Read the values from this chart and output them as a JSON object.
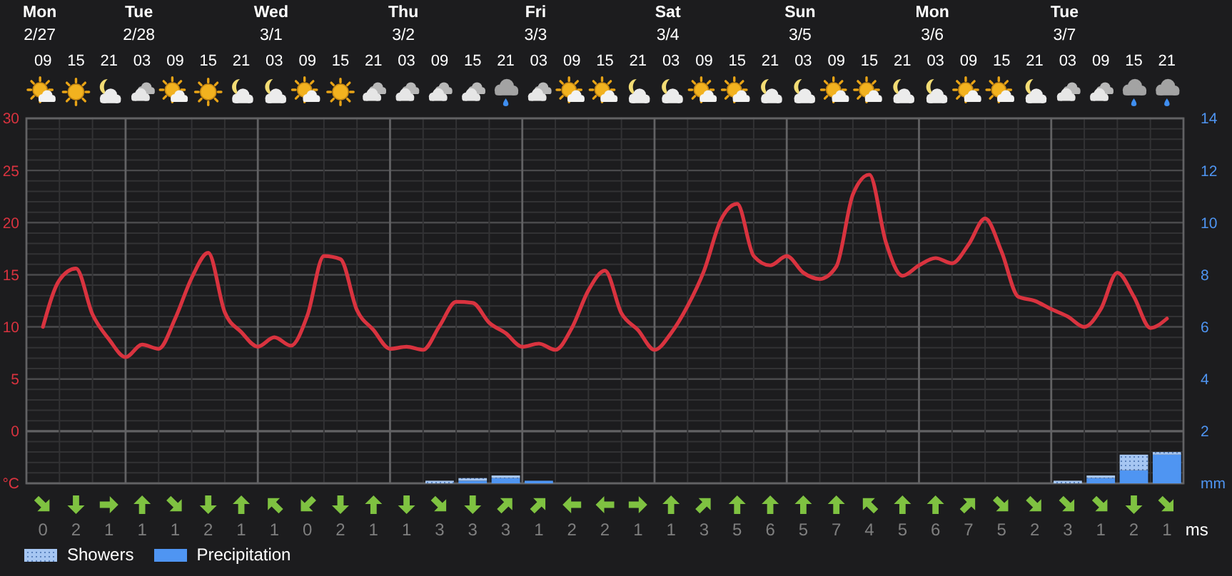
{
  "chart_data": [
    {
      "type": "line",
      "categories": [
        "Mon\n2/27\n09",
        null,
        "15",
        null,
        "21",
        null,
        "Tue\n2/28\n03",
        null,
        "09",
        null,
        "15",
        null,
        "21",
        null,
        "Wed\n3/1\n03",
        null,
        "09",
        null,
        "15",
        null,
        "21",
        null,
        "Thu\n3/2\n03",
        null,
        "09",
        null,
        "15",
        null,
        "21",
        null,
        "Fri\n3/3\n03",
        null,
        "09",
        null,
        "15",
        null,
        "21",
        null,
        "Sat\n3/4\n03",
        null,
        "09",
        null,
        "15",
        null,
        "21",
        null,
        "Sun\n3/5\n03",
        null,
        "09",
        null,
        "15",
        null,
        "21",
        null,
        "Mon\n3/6\n03",
        null,
        "09",
        null,
        "15",
        null,
        "21",
        null,
        "Tue\n3/7\n03",
        null,
        "09",
        null,
        "15",
        null,
        "21"
      ],
      "ylim": [
        -5,
        30
      ],
      "yticks": [
        {
          "value": -5,
          "label": "°C"
        },
        0,
        5,
        10,
        15,
        20,
        25,
        30
      ],
      "y2lim": [
        0,
        14
      ],
      "y2ticks": [
        {
          "value": 0,
          "label": "mm"
        },
        2,
        4,
        6,
        8,
        10,
        12,
        14
      ],
      "grid": true,
      "legend": "bottom left",
      "stacked": true,
      "series": [
        {
          "color": "#d9333f",
          "values": [
            10.0,
            14.5,
            15.6,
            11.2,
            8.8,
            7.1,
            8.3,
            7.9,
            10.8,
            14.7,
            17.1,
            11.4,
            9.5,
            8.1,
            9.0,
            8.2,
            11.1,
            16.8,
            16.5,
            11.6,
            9.7,
            7.9,
            8.1,
            7.8,
            10.1,
            12.4,
            12.3,
            10.4,
            9.4,
            8.1,
            8.4,
            7.8,
            9.9,
            13.5,
            15.4,
            11.3,
            9.7,
            7.8,
            9.4,
            12.0,
            15.4,
            20.2,
            21.8,
            16.8,
            15.9,
            16.8,
            15.2,
            14.6,
            15.8,
            22.7,
            24.6,
            18.1,
            14.9,
            15.9,
            16.6,
            16.1,
            17.9,
            20.4,
            17.2,
            12.9,
            12.5,
            11.7,
            11.0,
            10.0,
            11.7,
            15.2,
            12.9,
            9.9,
            10.8
          ]
        },
        {
          "name": "Precipitation",
          "type": "bar",
          "axis": "y2",
          "color": "#4f95f2",
          "values": [
            null,
            null,
            null,
            null,
            null,
            null,
            null,
            null,
            null,
            null,
            null,
            null,
            null,
            null,
            null,
            null,
            null,
            null,
            null,
            null,
            null,
            null,
            null,
            null,
            null,
            null,
            0.1,
            null,
            0.2,
            null,
            0.1,
            null,
            null,
            null,
            null,
            null,
            null,
            null,
            null,
            null,
            null,
            null,
            null,
            null,
            null,
            null,
            null,
            null,
            null,
            null,
            null,
            null,
            null,
            null,
            null,
            null,
            null,
            null,
            null,
            null,
            null,
            null,
            null,
            null,
            0.2,
            null,
            0.5,
            null,
            1.1
          ]
        },
        {
          "name": "Showers",
          "type": "bar",
          "axis": "y2",
          "color": "#a6c6f2",
          "values": [
            null,
            null,
            null,
            null,
            null,
            null,
            null,
            null,
            null,
            null,
            null,
            null,
            null,
            null,
            null,
            null,
            null,
            null,
            null,
            null,
            null,
            null,
            null,
            null,
            0.1,
            null,
            0.1,
            null,
            0.1,
            null,
            null,
            null,
            null,
            null,
            null,
            null,
            null,
            null,
            null,
            null,
            null,
            null,
            null,
            null,
            null,
            null,
            null,
            null,
            null,
            null,
            null,
            null,
            null,
            null,
            null,
            null,
            null,
            null,
            null,
            null,
            null,
            null,
            0.1,
            null,
            0.1,
            null,
            0.6,
            null,
            0.1
          ]
        }
      ]
    },
    {
      "type": "other",
      "categories": [
        null,
        null,
        null,
        null,
        null,
        null,
        null,
        null,
        null,
        null,
        null,
        null,
        null,
        null,
        null,
        null,
        null,
        null,
        null,
        null,
        null,
        null,
        null,
        null,
        null,
        null,
        null,
        null,
        null,
        null,
        null,
        null,
        null,
        null,
        null
      ],
      "values": [
        0,
        2,
        1,
        1,
        1,
        2,
        1,
        1,
        0,
        2,
        1,
        1,
        3,
        3,
        3,
        1,
        2,
        2,
        1,
        1,
        3,
        5,
        6,
        5,
        7,
        4,
        5,
        6,
        7,
        5,
        2,
        3,
        1,
        2,
        1
      ],
      "data_labels": true,
      "ylabel": "ms"
    }
  ]
}
